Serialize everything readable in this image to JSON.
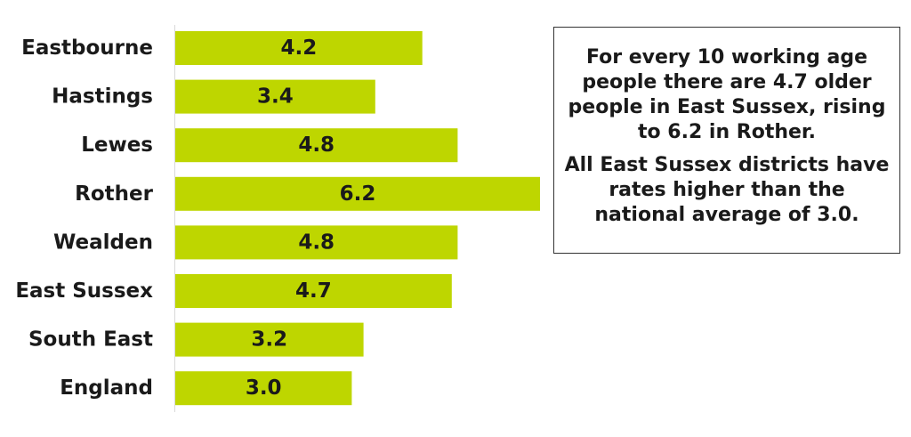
{
  "chart_data": {
    "type": "bar",
    "orientation": "horizontal",
    "categories": [
      "Eastbourne",
      "Hastings",
      "Lewes",
      "Rother",
      "Wealden",
      "East Sussex",
      "South East",
      "England"
    ],
    "values": [
      4.2,
      3.4,
      4.8,
      6.2,
      4.8,
      4.7,
      3.2,
      3.0
    ],
    "value_labels": [
      "4.2",
      "3.4",
      "4.8",
      "6.2",
      "4.8",
      "4.7",
      "3.2",
      "3.0"
    ],
    "xlim": [
      0,
      6.2
    ],
    "grid": false,
    "legend": "none",
    "bar_color": "#bed600"
  },
  "note": {
    "paragraph1": "For every 10 working age people there are 4.7 older people in East Sussex, rising to 6.2 in Rother.",
    "paragraph2": "All East Sussex districts have rates higher than the national average of 3.0."
  }
}
